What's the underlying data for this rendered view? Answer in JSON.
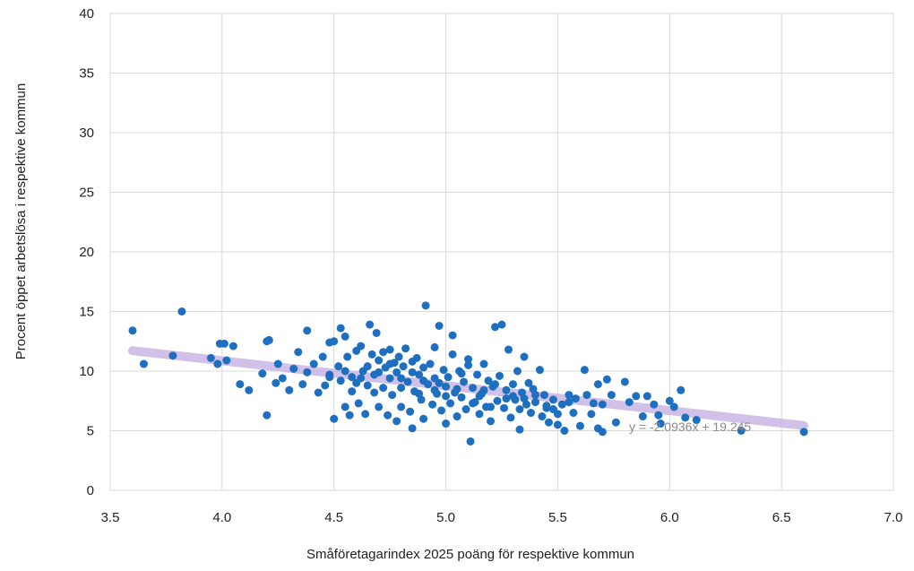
{
  "chart_data": {
    "type": "scatter",
    "title": "",
    "xlabel": "Småföretagarindex 2025 poäng för respektive kommun",
    "ylabel": "Procent öppet arbetslösa i respektive kommun",
    "xlim": [
      3.5,
      7.0
    ],
    "ylim": [
      0,
      40
    ],
    "x_ticks": [
      "3.5",
      "4.0",
      "4.5",
      "5.0",
      "5.5",
      "6.0",
      "6.5",
      "7.0"
    ],
    "y_ticks": [
      "0",
      "5",
      "10",
      "15",
      "20",
      "25",
      "30",
      "35",
      "40"
    ],
    "grid": true,
    "trendline": {
      "slope": -2.0936,
      "intercept": 19.245,
      "x_range": [
        3.6,
        6.6
      ],
      "color": "#c9b6e4",
      "label": "y = -2.0936x + 19.245"
    },
    "point_color": "#1f6fc0",
    "points": [
      [
        3.6,
        13.4
      ],
      [
        3.65,
        10.6
      ],
      [
        3.78,
        11.3
      ],
      [
        3.82,
        15.0
      ],
      [
        3.95,
        11.1
      ],
      [
        3.98,
        10.6
      ],
      [
        3.99,
        12.3
      ],
      [
        4.01,
        12.3
      ],
      [
        4.02,
        10.9
      ],
      [
        4.05,
        12.1
      ],
      [
        4.08,
        8.9
      ],
      [
        4.12,
        8.4
      ],
      [
        4.18,
        9.8
      ],
      [
        4.2,
        12.5
      ],
      [
        4.21,
        12.6
      ],
      [
        4.2,
        6.3
      ],
      [
        4.24,
        9.0
      ],
      [
        4.25,
        10.6
      ],
      [
        4.27,
        9.4
      ],
      [
        4.3,
        8.4
      ],
      [
        4.32,
        10.2
      ],
      [
        4.34,
        11.6
      ],
      [
        4.36,
        8.9
      ],
      [
        4.38,
        9.9
      ],
      [
        4.38,
        13.4
      ],
      [
        4.41,
        10.6
      ],
      [
        4.43,
        8.2
      ],
      [
        4.45,
        11.2
      ],
      [
        4.46,
        8.8
      ],
      [
        4.48,
        9.5
      ],
      [
        4.48,
        12.4
      ],
      [
        4.5,
        12.5
      ],
      [
        4.5,
        6.0
      ],
      [
        4.52,
        10.4
      ],
      [
        4.53,
        9.2
      ],
      [
        4.53,
        13.6
      ],
      [
        4.55,
        7.0
      ],
      [
        4.55,
        12.9
      ],
      [
        4.56,
        11.2
      ],
      [
        4.57,
        6.3
      ],
      [
        4.58,
        8.3
      ],
      [
        4.6,
        9.0
      ],
      [
        4.6,
        11.7
      ],
      [
        4.61,
        7.3
      ],
      [
        4.62,
        12.1
      ],
      [
        4.63,
        10.0
      ],
      [
        4.64,
        6.4
      ],
      [
        4.65,
        8.8
      ],
      [
        4.66,
        13.9
      ],
      [
        4.67,
        11.4
      ],
      [
        4.68,
        9.7
      ],
      [
        4.69,
        13.2
      ],
      [
        4.7,
        10.9
      ],
      [
        4.7,
        7.0
      ],
      [
        4.72,
        11.6
      ],
      [
        4.72,
        8.6
      ],
      [
        4.73,
        10.3
      ],
      [
        4.74,
        6.3
      ],
      [
        4.75,
        9.4
      ],
      [
        4.75,
        11.8
      ],
      [
        4.76,
        8.0
      ],
      [
        4.77,
        10.7
      ],
      [
        4.78,
        5.8
      ],
      [
        4.78,
        9.9
      ],
      [
        4.79,
        11.2
      ],
      [
        4.8,
        8.6
      ],
      [
        4.8,
        7.0
      ],
      [
        4.81,
        10.4
      ],
      [
        4.82,
        11.9
      ],
      [
        4.83,
        9.1
      ],
      [
        4.84,
        6.6
      ],
      [
        4.85,
        10.8
      ],
      [
        4.85,
        5.2
      ],
      [
        4.86,
        8.3
      ],
      [
        4.87,
        11.1
      ],
      [
        4.88,
        9.7
      ],
      [
        4.89,
        7.6
      ],
      [
        4.9,
        10.3
      ],
      [
        4.9,
        6.0
      ],
      [
        4.91,
        15.5
      ],
      [
        4.92,
        8.9
      ],
      [
        4.93,
        10.6
      ],
      [
        4.94,
        7.2
      ],
      [
        4.95,
        9.4
      ],
      [
        4.95,
        12.0
      ],
      [
        4.96,
        8.1
      ],
      [
        4.97,
        13.8
      ],
      [
        4.98,
        6.7
      ],
      [
        4.99,
        10.1
      ],
      [
        5.0,
        8.7
      ],
      [
        5.0,
        5.6
      ],
      [
        5.01,
        9.5
      ],
      [
        5.02,
        7.3
      ],
      [
        5.03,
        11.4
      ],
      [
        5.03,
        13.0
      ],
      [
        5.04,
        8.2
      ],
      [
        5.05,
        6.2
      ],
      [
        5.06,
        10.0
      ],
      [
        5.07,
        7.8
      ],
      [
        5.08,
        9.1
      ],
      [
        5.09,
        6.8
      ],
      [
        5.1,
        11.0
      ],
      [
        5.1,
        10.5
      ],
      [
        5.11,
        4.1
      ],
      [
        5.12,
        8.6
      ],
      [
        5.13,
        7.4
      ],
      [
        5.14,
        9.7
      ],
      [
        5.15,
        6.4
      ],
      [
        5.16,
        8.1
      ],
      [
        5.17,
        10.6
      ],
      [
        5.18,
        7.0
      ],
      [
        5.19,
        9.2
      ],
      [
        5.2,
        5.8
      ],
      [
        5.21,
        8.7
      ],
      [
        5.22,
        13.7
      ],
      [
        5.23,
        7.5
      ],
      [
        5.24,
        9.6
      ],
      [
        5.25,
        13.9
      ],
      [
        5.26,
        6.9
      ],
      [
        5.27,
        8.4
      ],
      [
        5.28,
        11.8
      ],
      [
        5.29,
        6.1
      ],
      [
        5.3,
        8.9
      ],
      [
        5.31,
        7.6
      ],
      [
        5.32,
        10.0
      ],
      [
        5.33,
        5.1
      ],
      [
        5.34,
        8.2
      ],
      [
        5.35,
        11.2
      ],
      [
        5.36,
        7.2
      ],
      [
        5.37,
        9.0
      ],
      [
        5.38,
        6.5
      ],
      [
        5.39,
        8.5
      ],
      [
        5.4,
        7.4
      ],
      [
        5.42,
        10.1
      ],
      [
        5.43,
        6.2
      ],
      [
        5.44,
        8.0
      ],
      [
        5.45,
        7.1
      ],
      [
        5.46,
        5.7
      ],
      [
        5.48,
        7.6
      ],
      [
        5.5,
        6.4
      ],
      [
        5.5,
        5.5
      ],
      [
        5.52,
        7.2
      ],
      [
        5.53,
        5.0
      ],
      [
        5.55,
        8.0
      ],
      [
        5.57,
        6.5
      ],
      [
        5.58,
        7.7
      ],
      [
        5.6,
        5.4
      ],
      [
        5.62,
        10.1
      ],
      [
        5.63,
        8.0
      ],
      [
        5.65,
        6.4
      ],
      [
        5.66,
        7.3
      ],
      [
        5.68,
        8.9
      ],
      [
        5.68,
        5.2
      ],
      [
        5.7,
        4.9
      ],
      [
        5.7,
        7.2
      ],
      [
        5.72,
        9.3
      ],
      [
        5.74,
        8.0
      ],
      [
        5.76,
        5.7
      ],
      [
        5.8,
        9.1
      ],
      [
        5.82,
        7.4
      ],
      [
        5.85,
        7.9
      ],
      [
        5.88,
        6.2
      ],
      [
        5.9,
        7.9
      ],
      [
        5.93,
        7.2
      ],
      [
        5.95,
        6.3
      ],
      [
        5.96,
        5.6
      ],
      [
        6.0,
        7.5
      ],
      [
        6.02,
        7.0
      ],
      [
        6.05,
        8.4
      ],
      [
        6.07,
        6.1
      ],
      [
        6.12,
        5.9
      ],
      [
        6.32,
        5.0
      ],
      [
        6.6,
        4.9
      ],
      [
        4.62,
        9.4
      ],
      [
        4.7,
        9.9
      ],
      [
        4.88,
        8.1
      ],
      [
        4.97,
        9.0
      ],
      [
        5.05,
        8.5
      ],
      [
        5.15,
        7.9
      ],
      [
        5.22,
        8.9
      ],
      [
        5.3,
        7.9
      ],
      [
        5.35,
        7.7
      ],
      [
        5.45,
        6.9
      ],
      [
        4.55,
        10.0
      ],
      [
        4.65,
        10.4
      ],
      [
        4.75,
        10.6
      ],
      [
        4.85,
        9.9
      ],
      [
        4.95,
        8.4
      ],
      [
        5.07,
        9.8
      ],
      [
        5.17,
        8.4
      ],
      [
        5.27,
        7.7
      ],
      [
        5.4,
        8.0
      ],
      [
        5.55,
        7.4
      ],
      [
        4.48,
        9.7
      ],
      [
        4.58,
        9.5
      ],
      [
        4.68,
        8.2
      ],
      [
        4.8,
        9.4
      ],
      [
        4.9,
        9.2
      ],
      [
        5.0,
        7.9
      ],
      [
        5.12,
        7.3
      ],
      [
        5.2,
        7.0
      ],
      [
        5.33,
        6.8
      ],
      [
        5.48,
        6.8
      ]
    ]
  }
}
